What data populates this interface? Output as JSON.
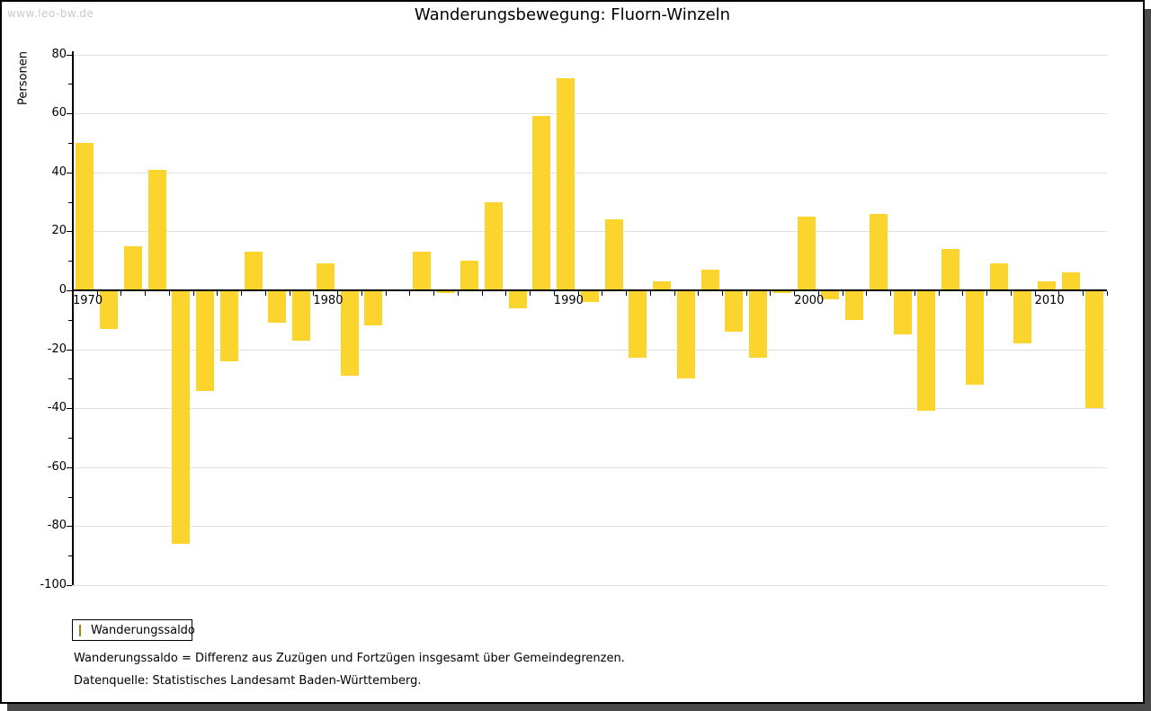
{
  "page": {
    "watermark": "www.leo-bw.de",
    "title": "Wanderungsbewegung: Fluorn-Winzeln"
  },
  "chart_data": {
    "type": "bar",
    "title": "Wanderungsbewegung: Fluorn-Winzeln",
    "xlabel": "",
    "ylabel": "Personen",
    "ylim": [
      -100,
      80
    ],
    "yticks": [
      80,
      60,
      40,
      20,
      0,
      -20,
      -40,
      -60,
      -80,
      -100
    ],
    "yticks_minor": [
      70,
      50,
      30,
      10,
      -10,
      -30,
      -50,
      -70,
      -90
    ],
    "xtick_labels": [
      "1970",
      "1980",
      "1990",
      "2000",
      "2010"
    ],
    "grid": true,
    "legend_position": "bottom-left",
    "x": [
      1970,
      1971,
      1972,
      1973,
      1974,
      1975,
      1976,
      1977,
      1978,
      1979,
      1980,
      1981,
      1982,
      1983,
      1984,
      1985,
      1986,
      1987,
      1988,
      1989,
      1990,
      1991,
      1992,
      1993,
      1994,
      1995,
      1996,
      1997,
      1998,
      1999,
      2000,
      2001,
      2002,
      2003,
      2004,
      2005,
      2006,
      2007,
      2008,
      2009,
      2010,
      2011,
      2012
    ],
    "series": [
      {
        "name": "Wanderungssaldo",
        "color": "#FBD42D",
        "values": [
          50,
          -13,
          15,
          41,
          -86,
          -34,
          -24,
          13,
          -11,
          -17,
          9,
          -29,
          -12,
          0,
          13,
          -1,
          10,
          30,
          -6,
          59,
          72,
          -4,
          24,
          -23,
          3,
          -30,
          7,
          -14,
          -23,
          -1,
          25,
          -3,
          -10,
          26,
          -15,
          -41,
          14,
          -32,
          9,
          -18,
          3,
          6,
          -40
        ]
      }
    ]
  },
  "legend": {
    "label": "Wanderungssaldo"
  },
  "footer": {
    "line1": "Wanderungssaldo = Differenz aus Zuzügen und Fortzügen insgesamt über Gemeindegrenzen.",
    "line2": "Datenquelle: Statistisches Landesamt Baden-Württemberg."
  },
  "colors": {
    "bar": "#FBD42D",
    "legend_swatch_border": "#9C8412",
    "grid": "#E0E0E0",
    "axis": "#000000",
    "watermark": "#C9C9C9",
    "shadow": "#4A4A4A"
  }
}
